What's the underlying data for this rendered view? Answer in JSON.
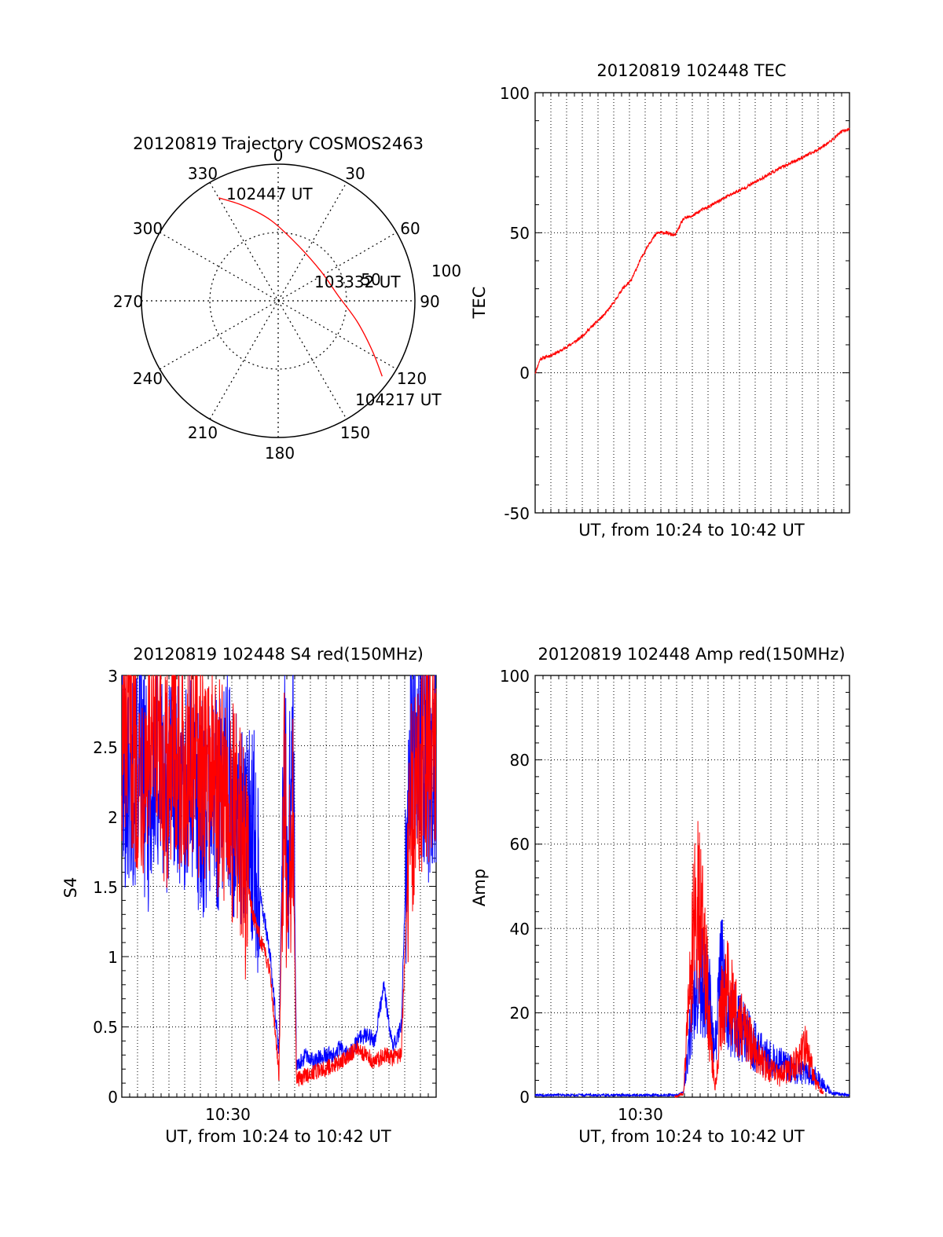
{
  "chart_data": [
    {
      "type": "polar",
      "title": "20120819 Trajectory COSMOS2463",
      "angle_labels": [
        "0",
        "30",
        "60",
        "90",
        "120",
        "150",
        "180",
        "210",
        "240",
        "270",
        "300",
        "330"
      ],
      "radius_labels": [
        "50",
        "100"
      ],
      "rlim": [
        0,
        100
      ],
      "grid": true,
      "track": {
        "color": "#ff0000",
        "points": [
          {
            "azimuth": 330,
            "elevation_offset": 87
          },
          {
            "azimuth": 340,
            "elevation_offset": 74
          },
          {
            "azimuth": 355,
            "elevation_offset": 59
          },
          {
            "azimuth": 20,
            "elevation_offset": 43
          },
          {
            "azimuth": 55,
            "elevation_offset": 38
          },
          {
            "azimuth": 85,
            "elevation_offset": 44
          },
          {
            "azimuth": 105,
            "elevation_offset": 60
          },
          {
            "azimuth": 118,
            "elevation_offset": 78
          },
          {
            "azimuth": 126,
            "elevation_offset": 94
          }
        ]
      },
      "annotations": [
        "102447 UT",
        "103332 UT",
        "104217 UT"
      ]
    },
    {
      "type": "line",
      "title": "20120819 102448 TEC",
      "xlabel": "UT, from 10:24 to 10:42 UT",
      "ylabel": "TEC",
      "xlim": [
        0,
        18
      ],
      "ylim": [
        -50,
        100
      ],
      "yticks": [
        "100",
        "50",
        "0",
        "-50"
      ],
      "grid": true,
      "series": [
        {
          "color": "#ff0000",
          "x": [
            0.0,
            0.3,
            0.8,
            1.5,
            2.0,
            2.5,
            3.0,
            3.5,
            4.0,
            4.5,
            5.0,
            5.5,
            6.0,
            6.5,
            7.0,
            7.5,
            8.0,
            8.5,
            9.0,
            9.5,
            10.0,
            11.0,
            12.0,
            13.0,
            14.0,
            15.0,
            16.0,
            16.5,
            17.0,
            17.5,
            18.0
          ],
          "values": [
            0,
            5,
            6,
            8,
            10,
            12,
            15,
            18,
            21,
            25,
            30,
            33,
            40,
            46,
            50,
            50,
            49,
            55,
            56,
            58,
            59.5,
            63,
            66,
            69.5,
            73,
            76,
            79,
            81,
            83,
            86,
            87
          ]
        }
      ]
    },
    {
      "type": "line",
      "title": "20120819 102448 S4 red(150MHz)",
      "xlabel": "UT, from 10:24 to 10:42 UT",
      "ylabel": "S4",
      "xtick_label": "10:30",
      "xlim": [
        0,
        18
      ],
      "ylim": [
        0,
        3
      ],
      "yticks": [
        "0",
        "0.5",
        "1",
        "1.5",
        "2",
        "2.5",
        "3"
      ],
      "grid": true,
      "series": [
        {
          "color": "#0000ff",
          "x": [
            0.0,
            0.5,
            1.0,
            1.5,
            2.0,
            2.5,
            3.0,
            3.5,
            4.0,
            4.5,
            5.0,
            5.5,
            6.0,
            6.5,
            7.0,
            7.5,
            8.0,
            8.5,
            9.0,
            9.3,
            9.5,
            9.8,
            10.0,
            10.5,
            11.0,
            11.5,
            12.0,
            12.5,
            13.0,
            13.5,
            14.0,
            14.5,
            15.0,
            15.5,
            16.0,
            16.5,
            17.0,
            17.5,
            18.0
          ],
          "values": [
            2.3,
            2.2,
            2.4,
            2.1,
            2.3,
            2.2,
            2.4,
            2.2,
            2.3,
            2.0,
            2.2,
            2.1,
            2.3,
            2.0,
            1.8,
            1.9,
            1.4,
            1.0,
            0.3,
            2.6,
            1.6,
            2.6,
            0.2,
            0.3,
            0.25,
            0.3,
            0.3,
            0.35,
            0.3,
            0.4,
            0.45,
            0.4,
            0.8,
            0.35,
            0.5,
            2.6,
            2.5,
            2.3,
            2.4
          ]
        },
        {
          "color": "#ff0000",
          "x": [
            0.0,
            0.5,
            1.0,
            1.5,
            2.0,
            2.5,
            3.0,
            3.5,
            4.0,
            4.5,
            5.0,
            5.5,
            6.0,
            6.5,
            7.0,
            7.5,
            8.0,
            8.5,
            9.0,
            9.3,
            9.5,
            9.8,
            10.0,
            10.5,
            11.0,
            11.5,
            12.0,
            12.5,
            13.0,
            13.5,
            14.0,
            14.5,
            15.0,
            15.5,
            16.0,
            16.5,
            17.0,
            17.5,
            18.0
          ],
          "values": [
            2.5,
            2.6,
            2.3,
            2.5,
            2.4,
            2.2,
            2.6,
            2.3,
            2.5,
            2.3,
            2.4,
            2.2,
            2.1,
            2.0,
            1.7,
            1.3,
            1.1,
            0.9,
            0.15,
            2.4,
            1.2,
            2.0,
            0.12,
            0.15,
            0.18,
            0.2,
            0.22,
            0.25,
            0.3,
            0.35,
            0.3,
            0.25,
            0.3,
            0.28,
            0.3,
            2.0,
            2.2,
            2.5,
            2.3
          ]
        }
      ]
    },
    {
      "type": "line",
      "title": "20120819 102448 Amp red(150MHz)",
      "xlabel": "UT, from 10:24 to 10:42 UT",
      "ylabel": "Amp",
      "xtick_label": "10:30",
      "xlim": [
        0,
        18
      ],
      "ylim": [
        0,
        100
      ],
      "yticks": [
        "0",
        "20",
        "40",
        "60",
        "80",
        "100"
      ],
      "grid": true,
      "series": [
        {
          "color": "#0000ff",
          "x": [
            0.0,
            2.0,
            4.0,
            6.0,
            8.0,
            8.5,
            9.0,
            9.5,
            10.0,
            10.3,
            10.6,
            11.0,
            12.0,
            13.0,
            14.0,
            15.0,
            16.0,
            16.5,
            17.0,
            18.0
          ],
          "values": [
            0.5,
            0.5,
            0.5,
            0.5,
            0.5,
            1,
            20,
            28,
            22,
            10,
            32,
            20,
            15,
            10,
            8,
            6,
            5,
            3,
            1,
            0.5
          ]
        },
        {
          "color": "#ff0000",
          "x": [
            8.0,
            8.5,
            9.0,
            9.3,
            9.5,
            9.8,
            10.0,
            10.3,
            10.6,
            11.0,
            12.0,
            13.0,
            14.0,
            15.0,
            15.5,
            16.0,
            16.5
          ],
          "values": [
            0,
            1,
            35,
            48,
            40,
            30,
            15,
            2,
            20,
            25,
            15,
            8,
            5,
            8,
            12,
            4,
            1
          ]
        }
      ]
    }
  ]
}
